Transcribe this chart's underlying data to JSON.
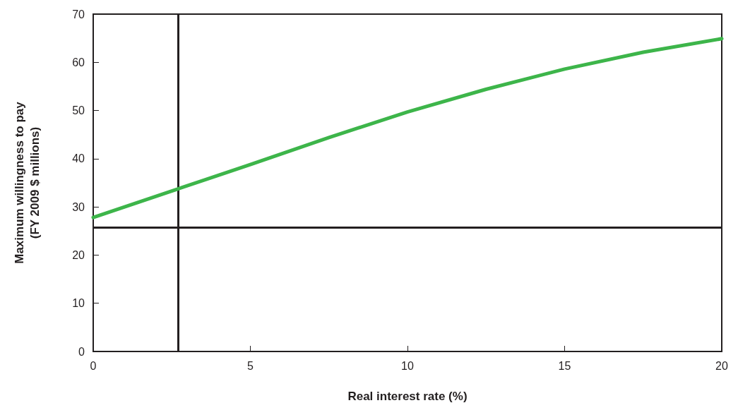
{
  "chart_data": {
    "type": "line",
    "xlabel": "Real interest rate (%)",
    "ylabel": "Maximum willingness to pay\n(FY 2009 $ millions)",
    "x": [
      0,
      2.5,
      5,
      7.5,
      10,
      12.5,
      15,
      17.5,
      20
    ],
    "series": [
      {
        "color": "#3db54a",
        "values": [
          27.8,
          33.3,
          38.8,
          44.4,
          49.7,
          54.4,
          58.6,
          62.1,
          64.9
        ]
      }
    ],
    "xlim": [
      0,
      20
    ],
    "xticks": [
      0,
      5,
      10,
      15,
      20
    ],
    "ylim": [
      0,
      70
    ],
    "yticks": [
      0,
      10,
      20,
      30,
      40,
      50,
      60,
      70
    ],
    "ref_lines": [
      {
        "axis": "x",
        "value": 2.7,
        "color": "#231f20"
      },
      {
        "axis": "y",
        "value": 25.8,
        "color": "#231f20"
      }
    ],
    "grid": false,
    "marker": "none",
    "line_style": "solid"
  }
}
